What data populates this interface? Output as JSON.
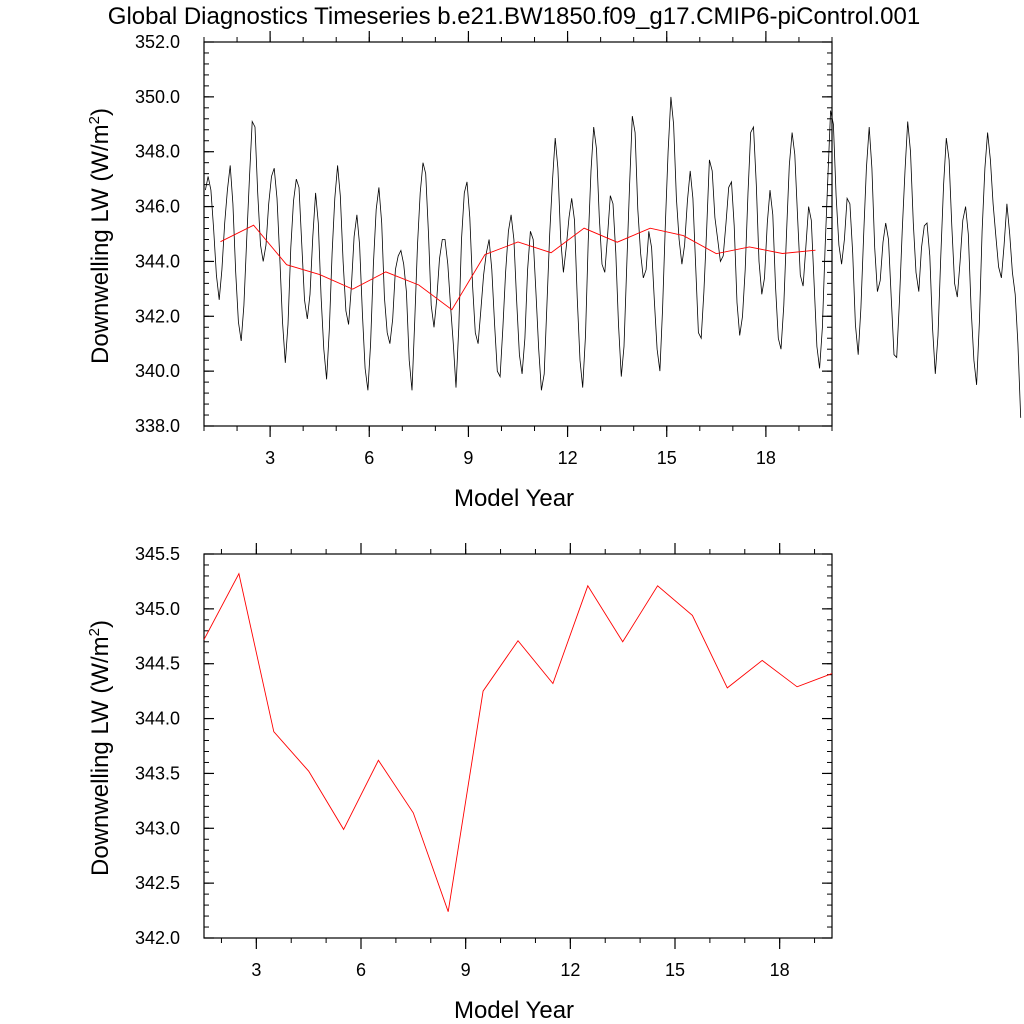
{
  "title": "Global Diagnostics Timeseries b.e21.BW1850.f09_g17.CMIP6-piControl.001",
  "colors": {
    "monthly": "#000000",
    "annual": "#ff0000",
    "axes": "#000000"
  },
  "chart_data": [
    {
      "type": "line",
      "xlabel": "Model Year",
      "ylabel": "Downwelling LW (W/m",
      "ylabel_sup": "2",
      "ylabel_close": ")",
      "xlim": [
        1,
        20
      ],
      "ylim": [
        338.0,
        352.0
      ],
      "xticks": [
        3,
        6,
        9,
        12,
        15,
        18
      ],
      "xtick_labels": [
        "3",
        "6",
        "9",
        "12",
        "15",
        "18"
      ],
      "yticks": [
        338,
        340,
        342,
        344,
        346,
        348,
        350,
        352
      ],
      "ytick_labels": [
        "338.0",
        "340.0",
        "342.0",
        "344.0",
        "346.0",
        "348.0",
        "350.0",
        "352.0"
      ],
      "series": [
        {
          "style": "monthly",
          "x_start": 1.0417,
          "x_step": 0.0833333,
          "values": [
            346.6,
            347.1,
            346.6,
            345.2,
            343.5,
            342.6,
            343.7,
            345.4,
            346.6,
            347.5,
            346.1,
            343.6,
            341.8,
            341.1,
            342.4,
            344.8,
            347.0,
            349.1,
            348.9,
            346.5,
            344.6,
            344.0,
            344.6,
            346.1,
            347.1,
            347.4,
            346.3,
            344.2,
            341.8,
            340.3,
            341.7,
            344.5,
            346.2,
            347.0,
            346.7,
            344.6,
            342.6,
            341.9,
            342.8,
            344.9,
            346.5,
            345.4,
            342.7,
            340.8,
            339.7,
            341.5,
            344.3,
            346.3,
            347.5,
            346.4,
            344.0,
            342.2,
            341.7,
            343.1,
            344.9,
            345.7,
            344.6,
            342.1,
            340.1,
            339.3,
            341.0,
            343.9,
            345.9,
            346.7,
            345.4,
            342.7,
            341.4,
            341.0,
            341.9,
            343.7,
            344.2,
            344.4,
            343.9,
            342.9,
            340.4,
            339.3,
            341.8,
            344.6,
            346.5,
            347.6,
            347.2,
            345.0,
            342.4,
            341.6,
            342.6,
            344.1,
            344.8,
            344.8,
            343.9,
            342.4,
            341.0,
            339.4,
            341.6,
            344.8,
            346.5,
            346.9,
            345.6,
            343.1,
            341.4,
            341.0,
            342.2,
            343.5,
            344.3,
            344.8,
            343.7,
            341.7,
            340.0,
            339.8,
            341.6,
            343.6,
            345.1,
            345.7,
            344.8,
            342.6,
            340.6,
            339.9,
            341.2,
            343.7,
            345.1,
            344.8,
            342.9,
            340.8,
            339.3,
            339.9,
            342.4,
            345.0,
            346.9,
            348.5,
            347.4,
            344.8,
            343.6,
            344.5,
            345.6,
            346.3,
            345.5,
            342.7,
            340.4,
            339.4,
            341.3,
            344.7,
            347.3,
            348.9,
            348.1,
            345.6,
            343.9,
            343.6,
            344.9,
            346.4,
            346.1,
            344.3,
            341.7,
            339.8,
            340.9,
            343.9,
            346.8,
            349.3,
            348.7,
            345.9,
            344.3,
            343.4,
            343.7,
            345.1,
            344.5,
            342.6,
            340.8,
            340.0,
            342.3,
            345.4,
            348.0,
            350.0,
            349.0,
            346.3,
            344.8,
            343.9,
            344.6,
            346.2,
            347.3,
            346.3,
            343.8,
            341.4,
            341.2,
            342.9,
            345.2,
            347.7,
            347.3,
            345.6,
            344.8,
            344.0,
            344.2,
            345.4,
            346.7,
            346.9,
            345.3,
            342.5,
            341.3,
            342.0,
            343.7,
            346.5,
            348.7,
            348.9,
            346.8,
            344.0,
            342.8,
            343.4,
            345.4,
            346.6,
            345.7,
            343.1,
            341.2,
            340.8,
            342.4,
            345.1,
            347.5,
            348.7,
            347.9,
            345.6,
            343.5,
            343.1,
            344.5,
            346.0,
            345.5,
            343.2,
            340.9,
            340.1,
            341.6,
            344.5,
            347.1,
            349.5,
            349.0,
            346.4,
            344.6,
            343.9,
            344.8,
            346.3,
            346.1,
            344.3,
            341.7,
            340.6,
            342.3,
            345.0,
            347.4,
            348.9,
            347.4,
            344.5,
            342.9,
            343.3,
            344.7,
            345.4,
            344.8,
            342.7,
            340.6,
            340.5,
            342.6,
            345.1,
            347.3,
            349.1,
            348.0,
            345.4,
            343.6,
            342.9,
            344.5,
            345.3,
            345.4,
            344.2,
            341.6,
            339.9,
            341.3,
            344.2,
            346.8,
            348.5,
            347.7,
            345.3,
            343.2,
            342.7,
            344.0,
            345.5,
            346.0,
            345.0,
            342.3,
            340.4,
            339.5,
            341.8,
            345.1,
            347.4,
            348.7,
            347.7,
            346.1,
            344.9,
            343.8,
            343.4,
            344.6,
            346.1,
            345.0,
            343.6,
            342.8,
            341.0,
            338.3
          ]
        },
        {
          "style": "annual",
          "x": [
            1.5,
            2.5,
            3.5,
            4.5,
            5.5,
            6.5,
            7.5,
            8.5,
            9.5,
            10.5,
            11.5,
            12.5,
            13.5,
            14.5,
            15.5,
            16.5,
            17.5,
            18.5,
            19.5
          ],
          "values": [
            344.72,
            345.32,
            343.88,
            343.52,
            342.99,
            343.62,
            343.14,
            342.24,
            344.25,
            344.71,
            344.32,
            345.21,
            344.7,
            345.21,
            344.94,
            344.28,
            344.53,
            344.29,
            344.41
          ]
        }
      ]
    },
    {
      "type": "line",
      "xlabel": "Model Year",
      "ylabel": "Downwelling LW (W/m",
      "ylabel_sup": "2",
      "ylabel_close": ")",
      "xlim": [
        1.5,
        19.5
      ],
      "ylim": [
        342.0,
        345.5
      ],
      "xticks": [
        3,
        6,
        9,
        12,
        15,
        18
      ],
      "xtick_labels": [
        "3",
        "6",
        "9",
        "12",
        "15",
        "18"
      ],
      "yticks": [
        342.0,
        342.5,
        343.0,
        343.5,
        344.0,
        344.5,
        345.0,
        345.5
      ],
      "ytick_labels": [
        "342.0",
        "342.5",
        "343.0",
        "343.5",
        "344.0",
        "344.5",
        "345.0",
        "345.5"
      ],
      "series": [
        {
          "style": "annual",
          "x": [
            1.5,
            2.5,
            3.5,
            4.5,
            5.5,
            6.5,
            7.5,
            8.5,
            9.5,
            10.5,
            11.5,
            12.5,
            13.5,
            14.5,
            15.5,
            16.5,
            17.5,
            18.5,
            19.5
          ],
          "values": [
            344.72,
            345.32,
            343.88,
            343.52,
            342.99,
            343.62,
            343.14,
            342.24,
            344.25,
            344.71,
            344.32,
            345.21,
            344.7,
            345.21,
            344.94,
            344.28,
            344.53,
            344.29,
            344.41
          ]
        }
      ]
    }
  ]
}
